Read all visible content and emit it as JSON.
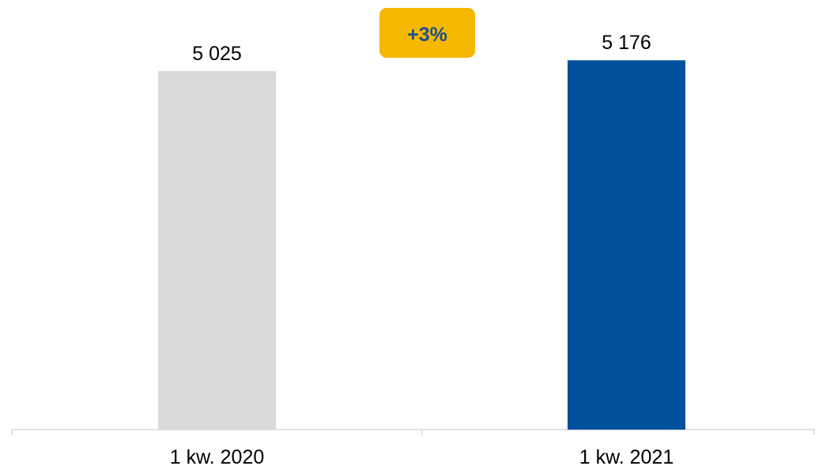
{
  "chart_data": {
    "type": "bar",
    "categories": [
      "1 kw. 2020",
      "1 kw. 2021"
    ],
    "values": [
      5025,
      5176
    ],
    "data_labels": [
      "5 025",
      "5 176"
    ],
    "bar_colors": [
      "#d9d9d9",
      "#00509e"
    ],
    "axis_color": "#d9d9d9",
    "ylim": [
      0,
      5600
    ],
    "grid": false,
    "legend": "none",
    "annotation": {
      "text": "+3%",
      "background": "#f5b800",
      "color": "#1f4e8c"
    }
  }
}
